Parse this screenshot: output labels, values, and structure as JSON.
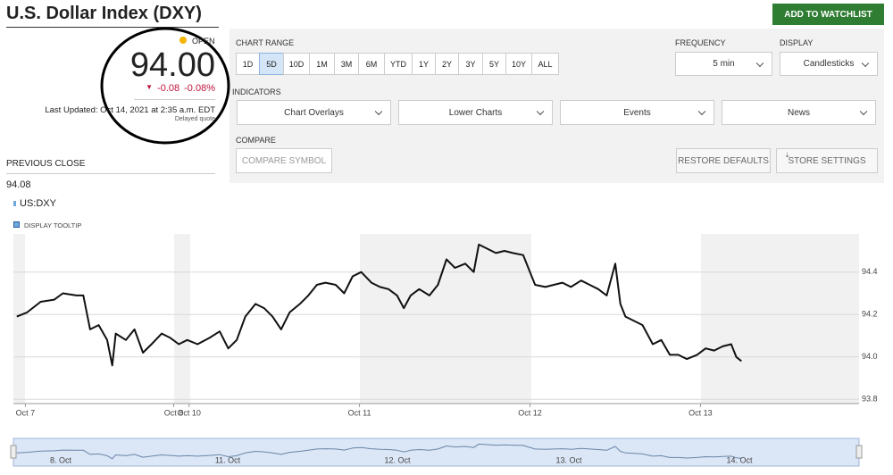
{
  "header": {
    "title": "U.S. Dollar Index (DXY)",
    "button": "ADD TO WATCHLIST"
  },
  "quote": {
    "status": "OPEN",
    "price": "94.00",
    "change": "-0.08",
    "change_pct": "-0.08%",
    "last_updated": "Last Updated: Oct 14, 2021 at 2:35 a.m. EDT",
    "delayed": "Delayed quote",
    "previous_close_label": "PREVIOUS CLOSE",
    "previous_close": "94.08"
  },
  "controls": {
    "chart_range_label": "CHART RANGE",
    "ranges": [
      "1D",
      "5D",
      "10D",
      "1M",
      "3M",
      "6M",
      "YTD",
      "1Y",
      "2Y",
      "3Y",
      "5Y",
      "10Y",
      "ALL"
    ],
    "active_range": "5D",
    "frequency_label": "FREQUENCY",
    "frequency": "5 min",
    "display_label": "DISPLAY",
    "display": "Candlesticks",
    "indicators_label": "INDICATORS",
    "indicators": [
      "Chart Overlays",
      "Lower Charts",
      "Events",
      "News"
    ],
    "compare_label": "COMPARE",
    "compare_placeholder": "COMPARE SYMBOL",
    "restore": "RESTORE DEFAULTS",
    "store": "STORE SETTINGS"
  },
  "chart_data": {
    "type": "line",
    "series": [
      {
        "name": "US:DXY",
        "color": "#111111",
        "x": [
          -0.05,
          0.01,
          0.09,
          0.17,
          0.22,
          0.3,
          0.34,
          0.38,
          0.43,
          0.48,
          0.51,
          0.53,
          0.59,
          0.64,
          0.69,
          0.74,
          0.8,
          0.85,
          0.9,
          0.95,
          1.01,
          1.08,
          1.14,
          1.19,
          1.24,
          1.29,
          1.35,
          1.4,
          1.45,
          1.5,
          1.55,
          1.61,
          1.66,
          1.71,
          1.76,
          1.82,
          1.87,
          1.92,
          1.97,
          2.03,
          2.08,
          2.13,
          2.18,
          2.22,
          2.26,
          2.31,
          2.37,
          2.42,
          2.47,
          2.52,
          2.58,
          2.63,
          2.66,
          2.71,
          2.76,
          2.81,
          2.86,
          2.92,
          2.95,
          2.99,
          3.05,
          3.1,
          3.15,
          3.2,
          3.26,
          3.31,
          3.36,
          3.41,
          3.46,
          3.49,
          3.52,
          3.57,
          3.62,
          3.68,
          3.73,
          3.78,
          3.83,
          3.88,
          3.94,
          3.99,
          4.04,
          4.09,
          4.14,
          4.17,
          4.2
        ],
        "values": [
          94.19,
          94.21,
          94.26,
          94.27,
          94.3,
          94.29,
          94.29,
          94.13,
          94.15,
          94.08,
          93.96,
          94.11,
          94.08,
          94.13,
          94.02,
          94.06,
          94.11,
          94.09,
          94.06,
          94.08,
          94.06,
          94.09,
          94.12,
          94.04,
          94.08,
          94.19,
          94.25,
          94.23,
          94.19,
          94.13,
          94.21,
          94.25,
          94.29,
          94.34,
          94.35,
          94.34,
          94.3,
          94.38,
          94.4,
          94.35,
          94.33,
          94.32,
          94.29,
          94.23,
          94.29,
          94.32,
          94.29,
          94.34,
          94.46,
          94.42,
          94.44,
          94.4,
          94.53,
          94.51,
          94.49,
          94.5,
          94.49,
          94.48,
          94.42,
          94.34,
          94.33,
          94.34,
          94.35,
          94.33,
          94.36,
          94.34,
          94.32,
          94.29,
          94.44,
          94.25,
          94.19,
          94.17,
          94.15,
          94.06,
          94.08,
          94.01,
          94.01,
          93.99,
          94.01,
          94.04,
          94.03,
          94.05,
          94.06,
          94.0,
          93.98
        ]
      }
    ],
    "tooltip_toggle": "DISPLAY TOOLTIP",
    "xlim": [
      -0.07,
      4.89
    ],
    "xticks": [
      {
        "value": 0,
        "label": "Oct 7"
      },
      {
        "value": 0.87,
        "label": "Oct 8"
      },
      {
        "value": 0.96,
        "label": "Oct 10"
      },
      {
        "value": 1.96,
        "label": "Oct 11"
      },
      {
        "value": 2.96,
        "label": "Oct 12"
      },
      {
        "value": 3.96,
        "label": "Oct 13"
      }
    ],
    "ylim": [
      93.78,
      94.58
    ],
    "yticks": [
      93.8,
      {
        "value": 94,
        "label": "94.0"
      },
      94.2,
      94.4
    ],
    "grid": true,
    "navigator_labels": [
      "8. Oct",
      "11. Oct",
      "12. Oct",
      "13. Oct",
      "14. Oct"
    ]
  }
}
